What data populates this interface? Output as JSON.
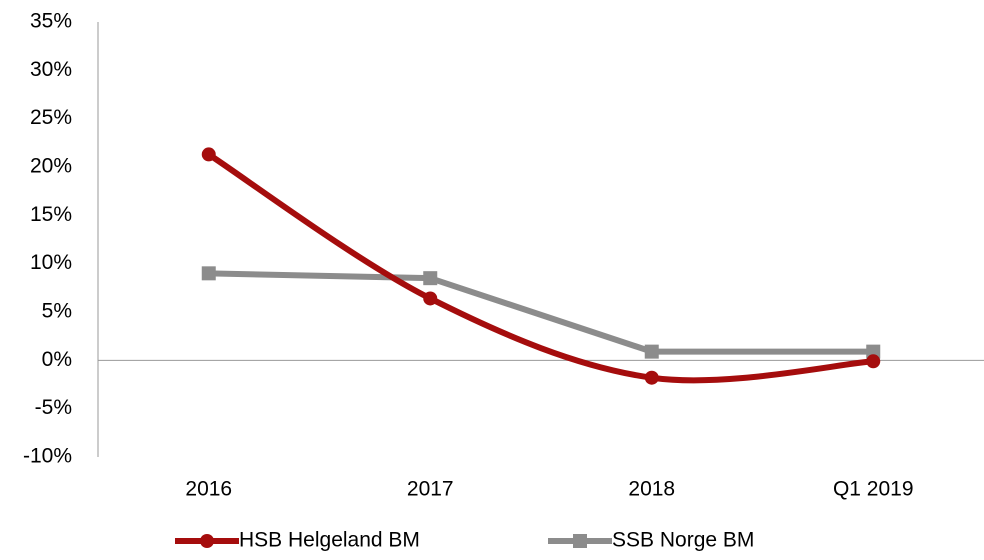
{
  "chart_data": {
    "type": "line",
    "categories": [
      "2016",
      "2017",
      "2018",
      "Q1 2019"
    ],
    "series": [
      {
        "name": "HSB Helgeland BM",
        "color": "#a50d0d",
        "marker": "circle",
        "smooth": true,
        "values": [
          21.3,
          6.4,
          -1.8,
          -0.1
        ]
      },
      {
        "name": "SSB Norge BM",
        "color": "#8c8c8c",
        "marker": "square",
        "smooth": false,
        "values": [
          9.0,
          8.5,
          0.9,
          0.9
        ]
      }
    ],
    "ylim": [
      -10,
      35
    ],
    "yticks": [
      {
        "value": -10,
        "label": "-10%"
      },
      {
        "value": -5,
        "label": "-5%"
      },
      {
        "value": 0,
        "label": "0%"
      },
      {
        "value": 5,
        "label": "5%"
      },
      {
        "value": 10,
        "label": "10%"
      },
      {
        "value": 15,
        "label": "15%"
      },
      {
        "value": 20,
        "label": "20%"
      },
      {
        "value": 25,
        "label": "25%"
      },
      {
        "value": 30,
        "label": "30%"
      },
      {
        "value": 35,
        "label": "35%"
      }
    ],
    "grid": false,
    "legend": "bottom"
  }
}
